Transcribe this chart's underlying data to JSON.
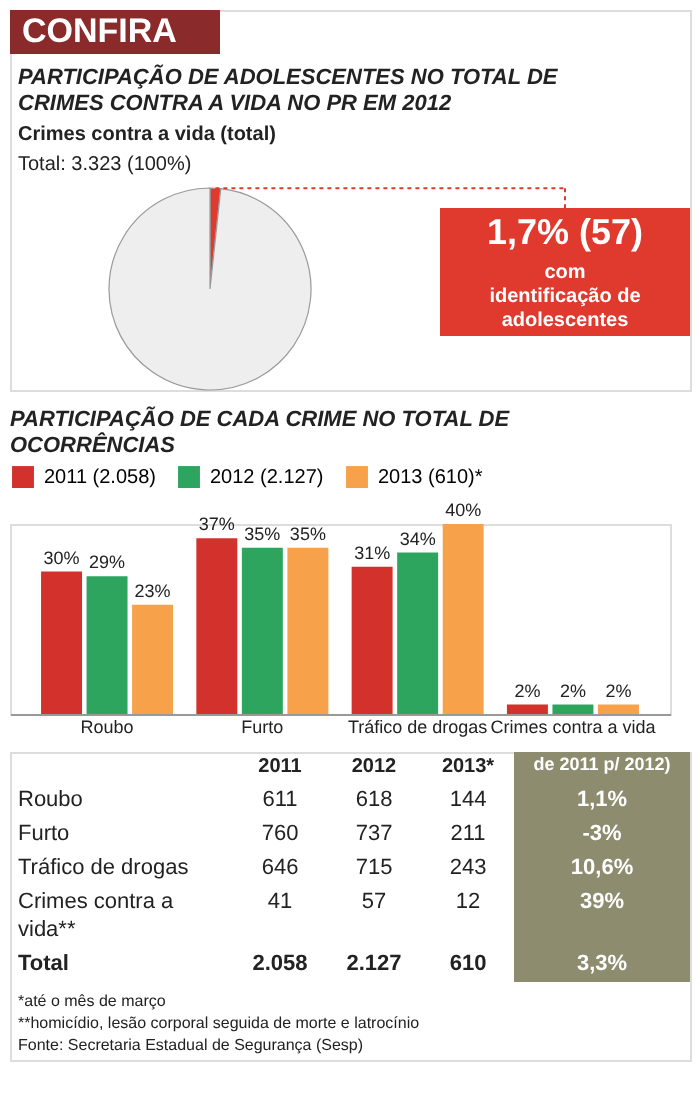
{
  "chart_data": [
    {
      "type": "pie",
      "title": "PARTICIPAÇÃO DE ADOLESCENTES NO TOTAL DE CRIMES CONTRA A VIDA NO PR EM 2012",
      "subtitle": "Crimes contra a vida (total)",
      "categories": [
        "com identificação de adolescentes",
        null
      ],
      "values": [
        1.7,
        98.3
      ],
      "colors": [
        "#e03a2e",
        "#eeeeee"
      ],
      "value_labels": [
        "1,7% (57)",
        null
      ],
      "annotations": [
        "CONFIRA",
        "Total: 3.323 (100%)"
      ]
    },
    {
      "type": "bar",
      "title": "PARTICIPAÇÃO DE CADA CRIME NO TOTAL DE OCORRÊNCIAS",
      "categories": [
        "Roubo",
        "Furto",
        "Tráfico de drogas",
        "Crimes contra a vida"
      ],
      "legend": "top",
      "series": [
        {
          "name": "2011 (2.058)",
          "color": "#d2322b",
          "values": [
            30,
            37,
            31,
            2
          ],
          "value_labels": [
            "30%",
            "37%",
            "31%",
            "2%"
          ]
        },
        {
          "name": "2012 (2.127)",
          "color": "#2ea55f",
          "values": [
            29,
            35,
            34,
            2
          ],
          "value_labels": [
            "29%",
            "35%",
            "34%",
            "2%"
          ]
        },
        {
          "name": "2013 (610)*",
          "color": "#f7a24a",
          "values": [
            23,
            35,
            40,
            2
          ],
          "value_labels": [
            "23%",
            "35%",
            "40%",
            "2%"
          ]
        }
      ]
    },
    {
      "type": "other",
      "categories": [
        "2011",
        "2012",
        "2013*",
        "de 2011 p/ 2012)"
      ],
      "y_categories": [
        "Roubo",
        "Furto",
        "Tráfico de drogas",
        "Crimes contra a vida**",
        "Total"
      ],
      "cell_labels": [
        [
          "611",
          "618",
          "144",
          "1,1%"
        ],
        [
          "760",
          "737",
          "211",
          "-3%"
        ],
        [
          "646",
          "715",
          "243",
          "10,6%"
        ],
        [
          "41",
          "57",
          "12",
          "39%"
        ],
        [
          "2.058",
          "2.127",
          "610",
          "3,3%"
        ]
      ],
      "annotations": [
        "*até o mês de março",
        "**homicídio, lesão corporal seguida de morte e latrocínio",
        "Fonte: Secretaria Estadual de Segurança (Sesp)"
      ]
    }
  ]
}
